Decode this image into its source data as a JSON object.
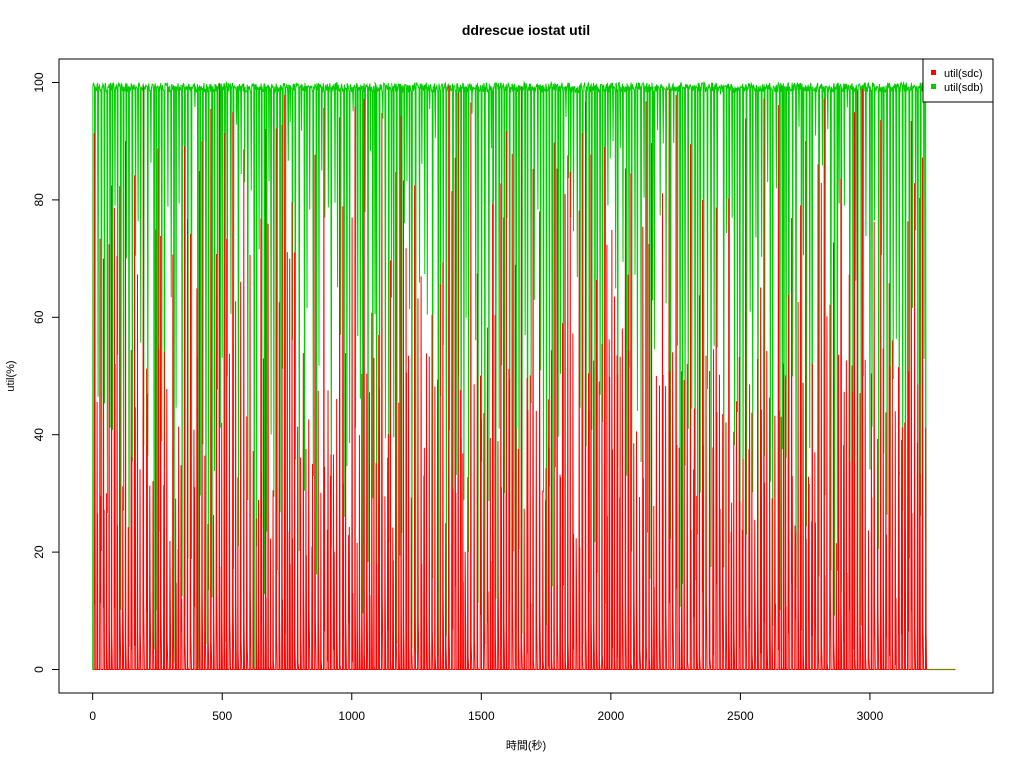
{
  "chart_data": {
    "type": "line",
    "title": "ddrescue iostat util",
    "xlabel": "時間(秒)",
    "ylabel": "util(%)",
    "xlim": [
      -130,
      3475
    ],
    "ylim": [
      -4,
      104
    ],
    "x_ticks": [
      0,
      500,
      1000,
      1500,
      2000,
      2500,
      3000
    ],
    "y_ticks": [
      0,
      20,
      40,
      60,
      80,
      100
    ],
    "x_tick_labels": [
      "0",
      "500",
      "1000",
      "1500",
      "2000",
      "2500",
      "3000"
    ],
    "y_tick_labels": [
      "0",
      "20",
      "40",
      "60",
      "80",
      "100"
    ],
    "grid": false,
    "legend_position": "top-right",
    "series": [
      {
        "name": "util(sdc)",
        "color": "#ff0000",
        "description": "oscillates rapidly between ~0 and ~45-100% roughly every 10 s from 0 s until ~3210 s, then flat at 0 until ~3330 s",
        "active_range": [
          0,
          3215
        ],
        "end_x": 3330,
        "low_value": 0,
        "high_range": [
          20,
          100
        ]
      },
      {
        "name": "util(sdb)",
        "color": "#00cc00",
        "description": "mostly ~99-100% with frequent drops toward ~0 roughly every 10 s from 0 s until ~3210 s, then flat at 0 until ~3330 s",
        "active_range": [
          0,
          3215
        ],
        "end_x": 3330,
        "high_value": 99.5,
        "low_value": 0
      }
    ]
  }
}
